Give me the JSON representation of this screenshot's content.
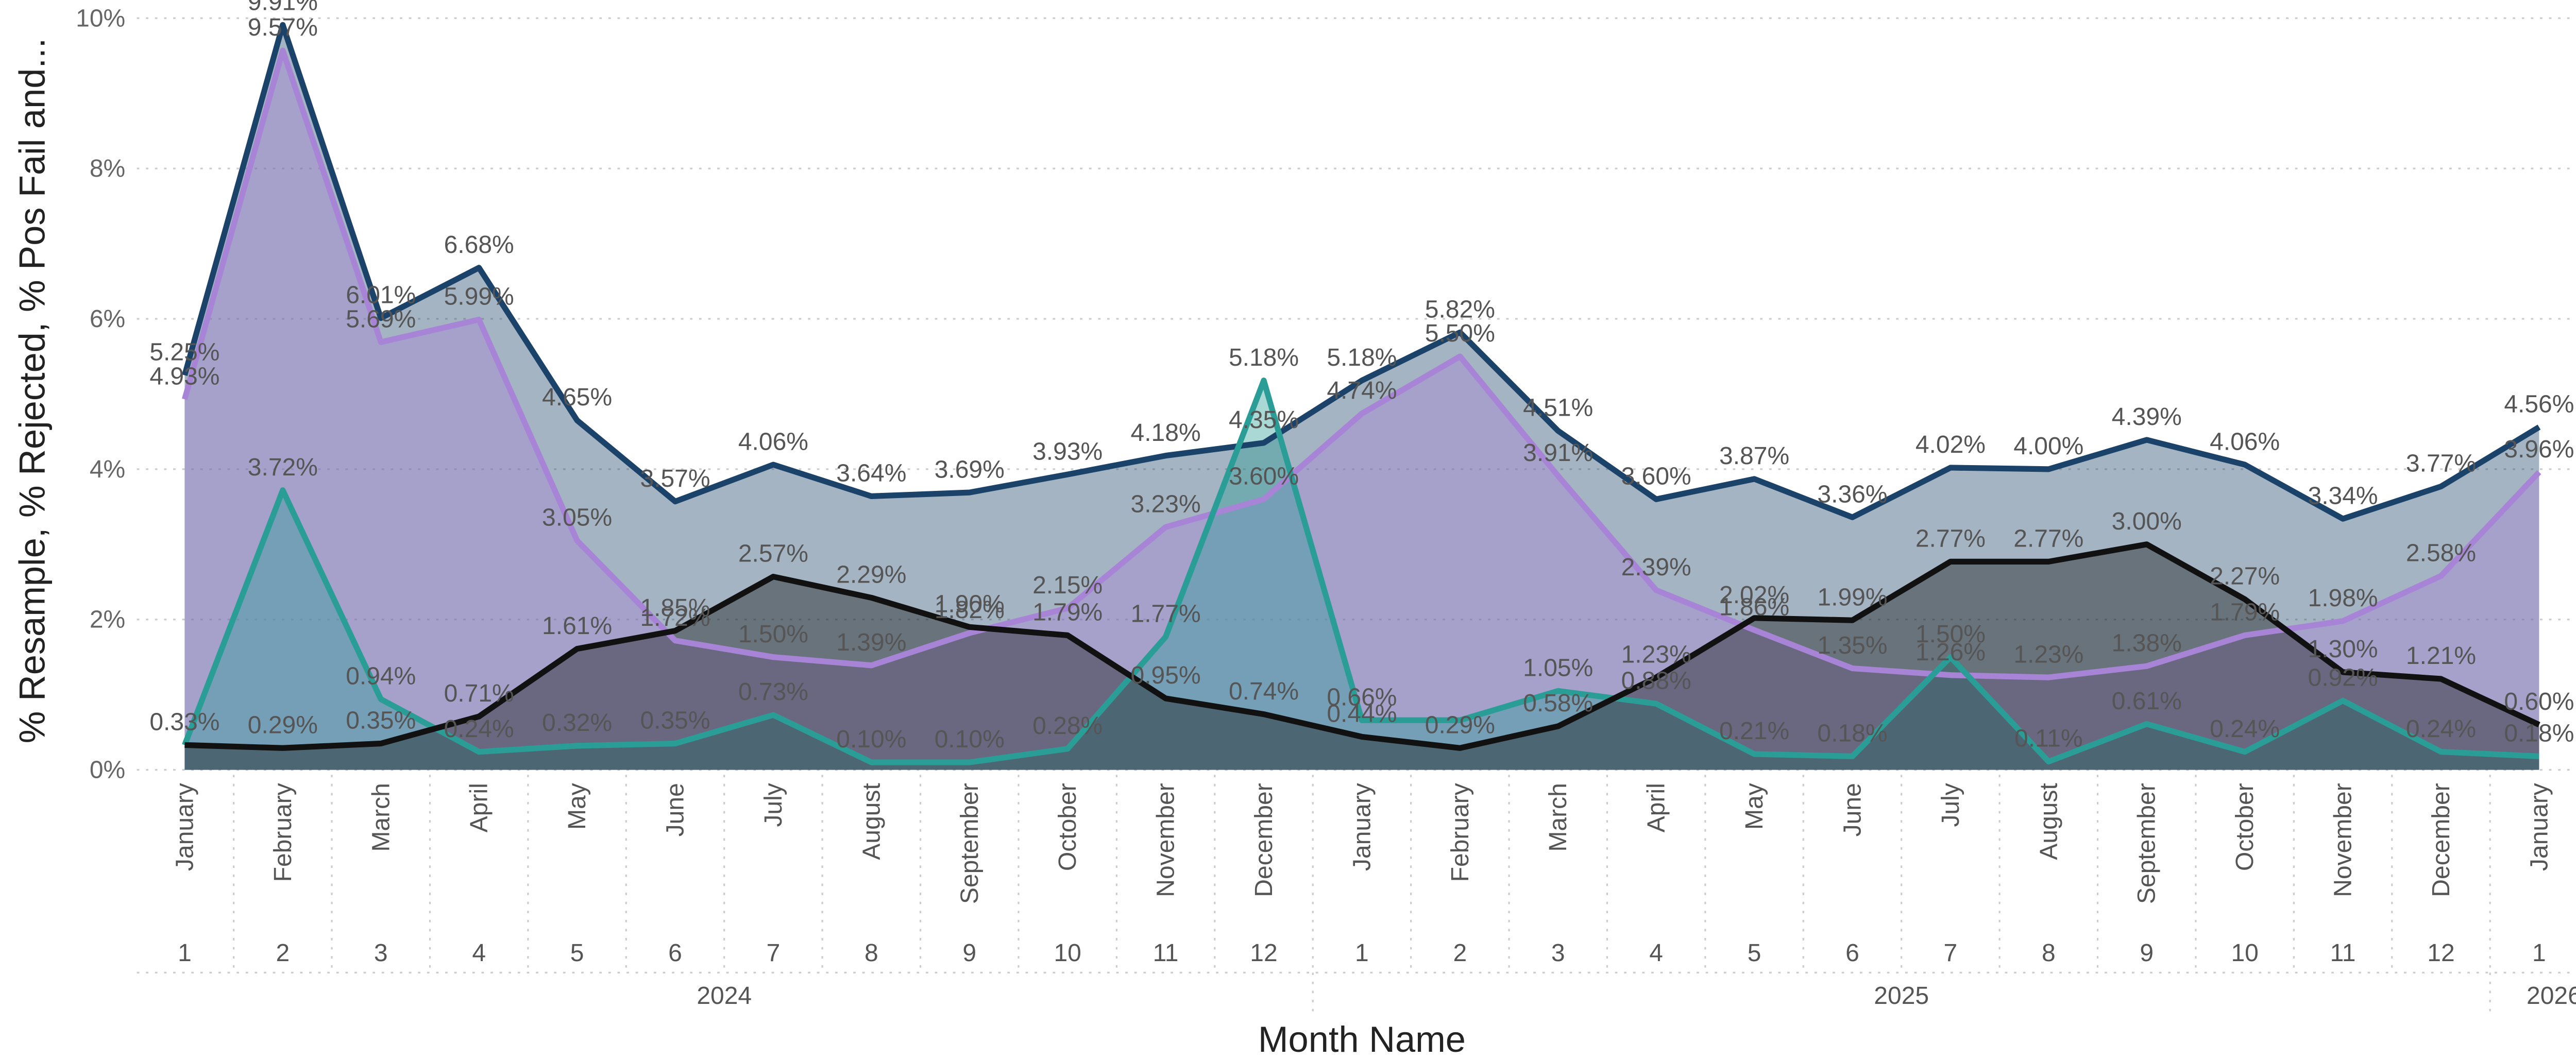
{
  "chart_data": {
    "type": "area",
    "y_title": "% Resample, % Rejected, % Pos Fail and...",
    "x_title": "Month Name",
    "categories": [
      "January",
      "February",
      "March",
      "April",
      "May",
      "June",
      "July",
      "August",
      "September",
      "October",
      "November",
      "December",
      "January",
      "February",
      "March",
      "April",
      "May",
      "June",
      "July",
      "August",
      "September",
      "October",
      "November",
      "December",
      "January"
    ],
    "month_numbers": [
      "1",
      "2",
      "3",
      "4",
      "5",
      "6",
      "7",
      "8",
      "9",
      "10",
      "11",
      "12",
      "1",
      "2",
      "3",
      "4",
      "5",
      "6",
      "7",
      "8",
      "9",
      "10",
      "11",
      "12",
      "1"
    ],
    "years": [
      "2024",
      "2025",
      "2026"
    ],
    "ylim": [
      0,
      10
    ],
    "yticks": [
      {
        "value": 0,
        "label": "0%"
      },
      {
        "value": 2,
        "label": "2%"
      },
      {
        "value": 4,
        "label": "4%"
      },
      {
        "value": 6,
        "label": "6%"
      },
      {
        "value": 8,
        "label": "8%"
      },
      {
        "value": 10,
        "label": "10%"
      }
    ],
    "grid": true,
    "series": [
      {
        "color": "#1b4369",
        "values": [
          5.25,
          9.91,
          6.01,
          6.68,
          4.65,
          3.57,
          4.06,
          3.64,
          3.69,
          3.93,
          4.18,
          4.35,
          5.18,
          5.82,
          4.51,
          3.6,
          3.87,
          3.36,
          4.02,
          4.0,
          4.39,
          4.06,
          3.34,
          3.77,
          4.56
        ],
        "value_labels": [
          "5.25%",
          "9.91%",
          "6.01%",
          "6.68%",
          "4.65%",
          "3.57%",
          "4.06%",
          "3.64%",
          "3.69%",
          "3.93%",
          "4.18%",
          "4.35%",
          "5.18%",
          "5.82%",
          "4.51%",
          "3.60%",
          "3.87%",
          "3.36%",
          "4.02%",
          "4.00%",
          "4.39%",
          "4.06%",
          "3.34%",
          "3.77%",
          "4.56%"
        ]
      },
      {
        "color": "#a884d6",
        "values": [
          4.93,
          9.57,
          5.69,
          5.99,
          3.05,
          1.72,
          1.5,
          1.39,
          1.82,
          2.15,
          3.23,
          3.6,
          4.74,
          5.5,
          3.91,
          2.39,
          1.86,
          1.35,
          1.26,
          1.23,
          1.38,
          1.79,
          1.98,
          2.58,
          3.96
        ],
        "value_labels": [
          "4.93%",
          "9.57%",
          "5.69%",
          "5.99%",
          "3.05%",
          "1.72%",
          "1.50%",
          "1.39%",
          "1.82%",
          "2.15%",
          "3.23%",
          "3.60%",
          "4.74%",
          "5.50%",
          "3.91%",
          "2.39%",
          "1.86%",
          "1.35%",
          "1.26%",
          "1.23%",
          "1.38%",
          "1.79%",
          "1.98%",
          "2.58%",
          "3.96%"
        ]
      },
      {
        "color": "#2a9d96",
        "values": [
          0.33,
          3.72,
          0.94,
          0.24,
          0.32,
          0.35,
          0.73,
          0.1,
          0.1,
          0.28,
          1.77,
          5.18,
          0.66,
          0.66,
          1.05,
          0.88,
          0.21,
          0.18,
          1.5,
          0.11,
          0.61,
          0.24,
          0.92,
          0.24,
          0.18
        ],
        "value_labels": [
          null,
          "3.72%",
          "0.94%",
          "0.24%",
          "0.32%",
          "0.35%",
          "0.73%",
          "0.10%",
          "0.10%",
          "0.28%",
          "1.77%",
          "5.18%",
          "0.66%",
          null,
          "1.05%",
          "0.88%",
          "0.21%",
          "0.18%",
          "1.50%",
          "0.11%",
          "0.61%",
          "0.24%",
          "0.92%",
          "0.24%",
          "0.18%"
        ]
      },
      {
        "color": "#111111",
        "values": [
          0.33,
          0.29,
          0.35,
          0.71,
          1.61,
          1.85,
          2.57,
          2.29,
          1.9,
          1.79,
          0.95,
          0.74,
          0.44,
          0.29,
          0.58,
          1.23,
          2.02,
          1.99,
          2.77,
          2.77,
          3.0,
          2.27,
          1.3,
          1.21,
          0.6
        ],
        "value_labels": [
          "0.33%",
          "0.29%",
          "0.35%",
          "0.71%",
          "1.61%",
          "1.85%",
          "2.57%",
          "2.29%",
          "1.90%",
          "1.79%",
          "0.95%",
          "0.74%",
          "0.44%",
          "0.29%",
          "0.58%",
          "1.23%",
          "2.02%",
          "1.99%",
          "2.77%",
          "2.77%",
          "3.00%",
          "2.27%",
          "1.30%",
          "1.21%",
          "0.60%"
        ]
      }
    ]
  }
}
